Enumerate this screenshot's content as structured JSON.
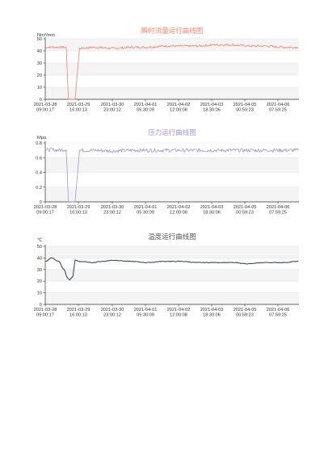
{
  "charts": [
    {
      "title": "瞬时流量运行曲线图",
      "unit": "Nm³/min",
      "color": "#f4856a",
      "titleColor": "#f4856a",
      "ylim": [
        0,
        50
      ],
      "yticks": [
        0,
        10,
        20,
        30,
        40,
        50
      ],
      "xticks": [
        {
          "date": "2021-03-28",
          "time": "09:00:17"
        },
        {
          "date": "2021-03-29",
          "time": "16:00:13"
        },
        {
          "date": "2021-03-30",
          "time": "23:00:12"
        },
        {
          "date": "2021-04-01",
          "time": "05:30:09"
        },
        {
          "date": "2021-04-02",
          "time": "12:00:08"
        },
        {
          "date": "2021-04-03",
          "time": "18:30:06"
        },
        {
          "date": "2021-04-05",
          "time": "00:59:23"
        },
        {
          "date": "2021-04-06",
          "time": "07:59:25"
        }
      ]
    },
    {
      "title": "压力运行曲线图",
      "unit": "Mpa",
      "color": "#a393df",
      "titleColor": "#a393df",
      "ylim": [
        0,
        0.8
      ],
      "yticks": [
        0,
        0.2,
        0.4,
        0.6,
        0.8
      ],
      "xticks": [
        {
          "date": "2021-03-28",
          "time": "09:00:17"
        },
        {
          "date": "2021-03-29",
          "time": "16:00:13"
        },
        {
          "date": "2021-03-30",
          "time": "23:00:12"
        },
        {
          "date": "2021-04-01",
          "time": "05:30:09"
        },
        {
          "date": "2021-04-02",
          "time": "12:00:08"
        },
        {
          "date": "2021-04-03",
          "time": "18:30:06"
        },
        {
          "date": "2021-04-05",
          "time": "00:59:23"
        },
        {
          "date": "2021-04-06",
          "time": "07:59:25"
        }
      ]
    },
    {
      "title": "温度运行曲线图",
      "unit": "℃",
      "color": "#3d4a5c",
      "titleColor": "#555555",
      "ylim": [
        0,
        50
      ],
      "yticks": [
        0,
        10,
        20,
        30,
        40,
        50
      ],
      "xticks": [
        {
          "date": "2021-03-28",
          "time": "09:00:17"
        },
        {
          "date": "2021-03-29",
          "time": "16:00:13"
        },
        {
          "date": "2021-03-30",
          "time": "23:00:12"
        },
        {
          "date": "2021-04-01",
          "time": "05:30:09"
        },
        {
          "date": "2021-04-02",
          "time": "12:00:08"
        },
        {
          "date": "2021-04-03",
          "time": "18:30:06"
        },
        {
          "date": "2021-04-05",
          "time": "00:59:23"
        },
        {
          "date": "2021-04-06",
          "time": "07:59:25"
        }
      ]
    }
  ],
  "chart_data": [
    {
      "type": "line",
      "title": "瞬时流量运行曲线图",
      "ylabel": "Nm³/min",
      "ylim": [
        0,
        50
      ],
      "x": [
        "2021-03-28 09:00:17",
        "2021-03-28 14:00",
        "2021-03-28 21:00",
        "2021-03-29 04:00",
        "2021-03-29 06:00",
        "2021-03-29 08:00",
        "2021-03-29 10:00",
        "2021-03-29 12:00",
        "2021-03-29 16:00:13",
        "2021-03-30 06:00",
        "2021-03-30 23:00:12",
        "2021-03-31 14:00",
        "2021-04-01 05:30:09",
        "2021-04-01 20:00",
        "2021-04-02 12:00:08",
        "2021-04-03 03:00",
        "2021-04-03 18:30:06",
        "2021-04-04 09:00",
        "2021-04-05 00:59:23",
        "2021-04-05 16:00",
        "2021-04-06 07:59:25",
        "2021-04-06 22:00"
      ],
      "y": [
        43,
        43,
        43,
        43,
        0,
        0,
        0,
        0,
        42,
        43,
        42,
        43,
        43,
        44,
        44,
        44,
        45,
        45,
        44,
        44,
        43,
        43
      ]
    },
    {
      "type": "line",
      "title": "压力运行曲线图",
      "ylabel": "Mpa",
      "ylim": [
        0,
        0.8
      ],
      "x": [
        "2021-03-28 09:00:17",
        "2021-03-28 14:00",
        "2021-03-28 21:00",
        "2021-03-29 04:00",
        "2021-03-29 06:00",
        "2021-03-29 08:00",
        "2021-03-29 10:00",
        "2021-03-29 12:00",
        "2021-03-29 16:00:13",
        "2021-03-30 06:00",
        "2021-03-30 23:00:12",
        "2021-03-31 14:00",
        "2021-04-01 05:30:09",
        "2021-04-01 20:00",
        "2021-04-02 12:00:08",
        "2021-04-03 03:00",
        "2021-04-03 18:30:06",
        "2021-04-04 09:00",
        "2021-04-05 00:59:23",
        "2021-04-05 16:00",
        "2021-04-06 07:59:25",
        "2021-04-06 22:00"
      ],
      "y": [
        0.7,
        0.71,
        0.7,
        0.71,
        0,
        0,
        0,
        0,
        0.7,
        0.7,
        0.69,
        0.7,
        0.7,
        0.7,
        0.7,
        0.7,
        0.7,
        0.7,
        0.7,
        0.7,
        0.7,
        0.7
      ]
    },
    {
      "type": "line",
      "title": "温度运行曲线图",
      "ylabel": "℃",
      "ylim": [
        0,
        50
      ],
      "x": [
        "2021-03-28 09:00:17",
        "2021-03-28 15:00",
        "2021-03-28 21:00",
        "2021-03-29 02:00",
        "2021-03-29 05:00",
        "2021-03-29 07:00",
        "2021-03-29 10:00",
        "2021-03-29 12:00",
        "2021-03-29 16:00:13",
        "2021-03-30 04:00",
        "2021-03-30 12:00",
        "2021-03-30 23:00:12",
        "2021-03-31 14:00",
        "2021-04-01 05:30:09",
        "2021-04-01 20:00",
        "2021-04-02 12:00:08",
        "2021-04-03 03:00",
        "2021-04-03 18:30:06",
        "2021-04-04 09:00",
        "2021-04-05 00:59:23",
        "2021-04-05 16:00",
        "2021-04-06 07:59:25",
        "2021-04-06 22:00"
      ],
      "y": [
        37,
        40,
        37,
        30,
        23,
        21,
        24,
        38,
        37,
        36,
        37,
        38,
        37,
        36,
        37,
        37,
        36,
        36,
        36,
        35,
        36,
        36,
        37
      ]
    }
  ]
}
